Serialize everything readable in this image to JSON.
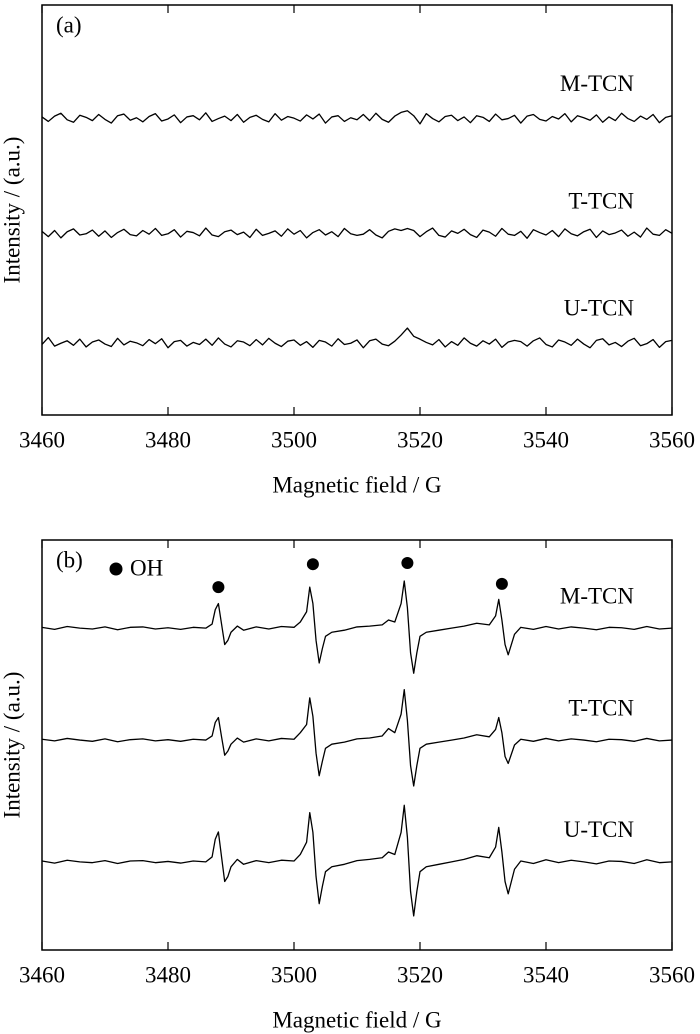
{
  "chart_data": [
    {
      "type": "line",
      "panel_label": "(a)",
      "xlabel": "Magnetic field / G",
      "ylabel": "Intensity / (a.u.)",
      "xlim": [
        3460,
        3560
      ],
      "ylim": [
        0,
        10
      ],
      "xticks": [
        3460,
        3480,
        3500,
        3520,
        3540,
        3560
      ],
      "x": [
        3460,
        3461,
        3462,
        3463,
        3464,
        3465,
        3466,
        3467,
        3468,
        3469,
        3470,
        3471,
        3472,
        3473,
        3474,
        3475,
        3476,
        3477,
        3478,
        3479,
        3480,
        3481,
        3482,
        3483,
        3484,
        3485,
        3486,
        3487,
        3488,
        3489,
        3490,
        3491,
        3492,
        3493,
        3494,
        3495,
        3496,
        3497,
        3498,
        3499,
        3500,
        3501,
        3502,
        3503,
        3504,
        3505,
        3506,
        3507,
        3508,
        3509,
        3510,
        3511,
        3512,
        3513,
        3514,
        3515,
        3516,
        3517,
        3518,
        3519,
        3520,
        3521,
        3522,
        3523,
        3524,
        3525,
        3526,
        3527,
        3528,
        3529,
        3530,
        3531,
        3532,
        3533,
        3534,
        3535,
        3536,
        3537,
        3538,
        3539,
        3540,
        3541,
        3542,
        3543,
        3544,
        3545,
        3546,
        3547,
        3548,
        3549,
        3550,
        3551,
        3552,
        3553,
        3554,
        3555,
        3556,
        3557,
        3558,
        3559,
        3560
      ],
      "series": [
        {
          "name": "M-TCN",
          "color": "#000000",
          "values": [
            7.27,
            7.16,
            7.29,
            7.36,
            7.2,
            7.14,
            7.31,
            7.26,
            7.18,
            7.33,
            7.21,
            7.12,
            7.3,
            7.34,
            7.19,
            7.25,
            7.15,
            7.28,
            7.35,
            7.17,
            7.22,
            7.32,
            7.13,
            7.27,
            7.3,
            7.2,
            7.37,
            7.16,
            7.23,
            7.29,
            7.18,
            7.33,
            7.14,
            7.26,
            7.31,
            7.21,
            7.15,
            7.35,
            7.19,
            7.28,
            7.24,
            7.17,
            7.32,
            7.22,
            7.34,
            7.12,
            7.27,
            7.3,
            7.16,
            7.25,
            7.2,
            7.33,
            7.18,
            7.36,
            7.21,
            7.14,
            7.29,
            7.38,
            7.42,
            7.3,
            7.1,
            7.35,
            7.23,
            7.15,
            7.28,
            7.31,
            7.18,
            7.27,
            7.13,
            7.3,
            7.26,
            7.16,
            7.34,
            7.2,
            7.23,
            7.31,
            7.12,
            7.29,
            7.33,
            7.21,
            7.17,
            7.28,
            7.22,
            7.35,
            7.15,
            7.3,
            7.25,
            7.19,
            7.32,
            7.14,
            7.27,
            7.18,
            7.36,
            7.23,
            7.16,
            7.29,
            7.21,
            7.33,
            7.13,
            7.26,
            7.3
          ]
        },
        {
          "name": "T-TCN",
          "color": "#000000",
          "values": [
            4.48,
            4.35,
            4.5,
            4.32,
            4.47,
            4.54,
            4.39,
            4.42,
            4.51,
            4.36,
            4.49,
            4.33,
            4.45,
            4.53,
            4.4,
            4.37,
            4.5,
            4.41,
            4.55,
            4.38,
            4.42,
            4.52,
            4.34,
            4.48,
            4.45,
            4.37,
            4.56,
            4.39,
            4.35,
            4.47,
            4.51,
            4.4,
            4.46,
            4.33,
            4.53,
            4.38,
            4.43,
            4.49,
            4.36,
            4.54,
            4.41,
            4.5,
            4.32,
            4.45,
            4.52,
            4.39,
            4.47,
            4.35,
            4.55,
            4.42,
            4.38,
            4.41,
            4.52,
            4.39,
            4.32,
            4.48,
            4.54,
            4.5,
            4.55,
            4.5,
            4.35,
            4.47,
            4.56,
            4.38,
            4.34,
            4.49,
            4.43,
            4.53,
            4.4,
            4.33,
            4.51,
            4.46,
            4.36,
            4.55,
            4.41,
            4.38,
            4.48,
            4.31,
            4.52,
            4.45,
            4.39,
            4.5,
            4.35,
            4.54,
            4.42,
            4.37,
            4.47,
            4.53,
            4.33,
            4.49,
            4.4,
            4.44,
            4.51,
            4.36,
            4.46,
            4.34,
            4.56,
            4.41,
            4.38,
            4.52,
            4.43
          ]
        },
        {
          "name": "U-TCN",
          "color": "#000000",
          "values": [
            1.72,
            1.89,
            1.68,
            1.75,
            1.81,
            1.7,
            1.85,
            1.66,
            1.78,
            1.83,
            1.73,
            1.67,
            1.87,
            1.71,
            1.8,
            1.76,
            1.69,
            1.84,
            1.74,
            1.86,
            1.64,
            1.79,
            1.82,
            1.68,
            1.77,
            1.72,
            1.85,
            1.7,
            1.88,
            1.73,
            1.66,
            1.81,
            1.78,
            1.69,
            1.84,
            1.71,
            1.87,
            1.75,
            1.67,
            1.8,
            1.83,
            1.7,
            1.79,
            1.65,
            1.82,
            1.78,
            1.68,
            1.86,
            1.72,
            1.75,
            1.83,
            1.64,
            1.81,
            1.85,
            1.73,
            1.69,
            1.8,
            1.95,
            2.12,
            1.92,
            1.85,
            1.77,
            1.71,
            1.84,
            1.66,
            1.79,
            1.7,
            1.88,
            1.75,
            1.68,
            1.81,
            1.73,
            1.85,
            1.65,
            1.78,
            1.82,
            1.79,
            1.68,
            1.81,
            1.88,
            1.72,
            1.66,
            1.83,
            1.78,
            1.7,
            1.85,
            1.73,
            1.64,
            1.82,
            1.86,
            1.71,
            1.77,
            1.67,
            1.8,
            1.87,
            1.69,
            1.74,
            1.84,
            1.65,
            1.79,
            1.82
          ]
        }
      ]
    },
    {
      "type": "line",
      "panel_label": "(b)",
      "xlabel": "Magnetic field / G",
      "ylabel": "Intensity / (a.u.)",
      "xlim": [
        3460,
        3560
      ],
      "ylim": [
        0,
        10
      ],
      "xticks": [
        3460,
        3480,
        3500,
        3520,
        3540,
        3560
      ],
      "x": [
        3460,
        3462,
        3464,
        3466,
        3468,
        3470,
        3472,
        3474,
        3476,
        3478,
        3480,
        3482,
        3484,
        3486,
        3487,
        3487.5,
        3488,
        3488.5,
        3489,
        3489.5,
        3490,
        3491,
        3492,
        3494,
        3496,
        3498,
        3500,
        3501,
        3502,
        3502.5,
        3503,
        3503.5,
        3504,
        3504.5,
        3505,
        3506,
        3508,
        3510,
        3512,
        3514,
        3515,
        3516,
        3517,
        3517.5,
        3518,
        3518.5,
        3519,
        3519.5,
        3520,
        3521,
        3523,
        3525,
        3527,
        3529,
        3531,
        3532,
        3532.5,
        3533,
        3533.5,
        3534,
        3535,
        3536,
        3538,
        3540,
        3542,
        3544,
        3546,
        3548,
        3550,
        3552,
        3554,
        3556,
        3558,
        3560
      ],
      "series": [
        {
          "name": "M-TCN",
          "color": "#000000",
          "values": [
            7.87,
            7.82,
            7.89,
            7.85,
            7.83,
            7.88,
            7.81,
            7.87,
            7.88,
            7.83,
            7.86,
            7.82,
            7.87,
            7.85,
            7.95,
            8.3,
            8.45,
            7.95,
            7.45,
            7.55,
            7.75,
            7.9,
            7.8,
            7.88,
            7.83,
            7.89,
            7.87,
            8.0,
            8.25,
            8.85,
            8.45,
            7.55,
            7.0,
            7.35,
            7.65,
            7.75,
            7.8,
            7.88,
            7.9,
            7.93,
            8.05,
            8.0,
            8.45,
            9.0,
            8.35,
            7.25,
            6.75,
            7.25,
            7.65,
            7.75,
            7.8,
            7.85,
            7.9,
            7.97,
            7.93,
            8.15,
            8.55,
            8.05,
            7.45,
            7.2,
            7.7,
            7.87,
            7.82,
            7.89,
            7.83,
            7.88,
            7.85,
            7.81,
            7.87,
            7.86,
            7.82,
            7.89,
            7.83,
            7.85
          ]
        },
        {
          "name": "T-TCN",
          "color": "#000000",
          "values": [
            5.14,
            5.1,
            5.16,
            5.12,
            5.09,
            5.15,
            5.08,
            5.13,
            5.15,
            5.1,
            5.13,
            5.09,
            5.14,
            5.12,
            5.22,
            5.55,
            5.67,
            5.2,
            4.75,
            4.85,
            5.02,
            5.17,
            5.07,
            5.15,
            5.1,
            5.16,
            5.14,
            5.3,
            5.5,
            6.15,
            5.7,
            4.8,
            4.25,
            4.6,
            4.92,
            5.02,
            5.07,
            5.15,
            5.17,
            5.22,
            5.4,
            5.3,
            5.75,
            6.35,
            5.6,
            4.5,
            4.0,
            4.5,
            4.92,
            5.02,
            5.07,
            5.12,
            5.17,
            5.25,
            5.2,
            5.38,
            5.67,
            5.3,
            4.72,
            4.55,
            5.0,
            5.14,
            5.09,
            5.16,
            5.1,
            5.15,
            5.12,
            5.08,
            5.14,
            5.13,
            5.09,
            5.16,
            5.1,
            5.12
          ]
        },
        {
          "name": "U-TCN",
          "color": "#000000",
          "values": [
            2.17,
            2.12,
            2.19,
            2.15,
            2.13,
            2.18,
            2.11,
            2.17,
            2.18,
            2.13,
            2.16,
            2.12,
            2.17,
            2.15,
            2.27,
            2.7,
            2.88,
            2.27,
            1.67,
            1.79,
            2.03,
            2.21,
            2.09,
            2.18,
            2.13,
            2.19,
            2.17,
            2.33,
            2.63,
            3.35,
            2.87,
            1.79,
            1.13,
            1.55,
            1.91,
            2.03,
            2.09,
            2.18,
            2.21,
            2.25,
            2.39,
            2.33,
            2.87,
            3.53,
            2.75,
            1.43,
            0.83,
            1.43,
            1.91,
            2.03,
            2.09,
            2.15,
            2.21,
            2.3,
            2.25,
            2.51,
            2.99,
            2.39,
            1.67,
            1.37,
            1.97,
            2.17,
            2.11,
            2.2,
            2.13,
            2.19,
            2.15,
            2.1,
            2.17,
            2.16,
            2.11,
            2.2,
            2.13,
            2.15
          ]
        }
      ],
      "markers": {
        "label": "OH",
        "color": "#000000",
        "x": [
          3488,
          3503,
          3518,
          3533
        ],
        "y": [
          8.85,
          9.41,
          9.44,
          8.93
        ]
      }
    }
  ]
}
